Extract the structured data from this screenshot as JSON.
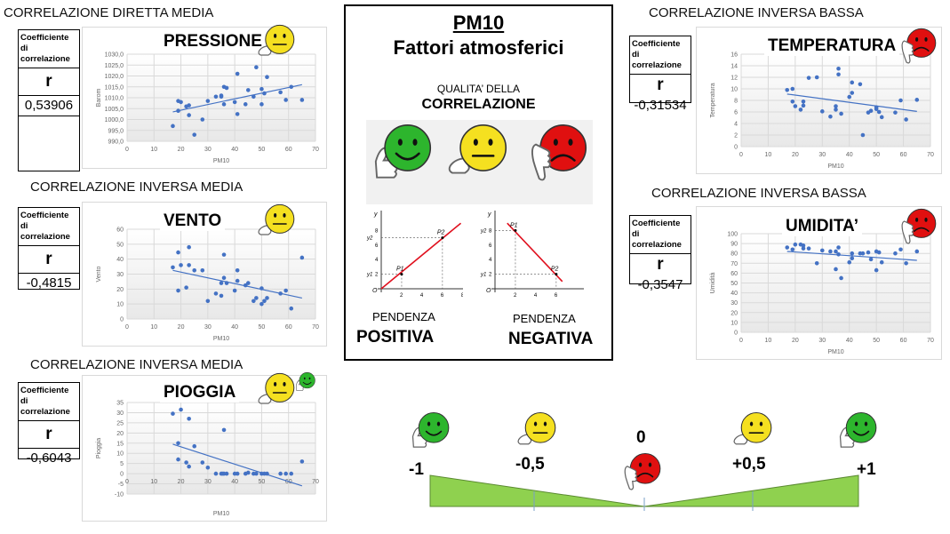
{
  "colors": {
    "point": "#4472c4",
    "trend": "#4472c4",
    "green_face": "#2db52d",
    "yellow_face": "#f5e020",
    "red_face": "#e01010",
    "scale_fill": "#8fd14f",
    "slope_line": "#e0101e"
  },
  "sections": [
    {
      "header": "CORRELAZIONE DIRETTA MEDIA",
      "coef_label": "Coefficiente di correlazione",
      "r_label": "r",
      "r_value": "0,53906",
      "title": "PRESSIONE",
      "faces": [
        "neutral"
      ]
    },
    {
      "header": "CORRELAZIONE INVERSA MEDIA",
      "coef_label": "Coefficiente di correlazione",
      "r_label": "r",
      "r_value": "-0,4815",
      "title": "VENTO",
      "faces": [
        "neutral"
      ]
    },
    {
      "header": "CORRELAZIONE INVERSA MEDIA",
      "coef_label": "Coefficiente di correlazione",
      "r_label": "r",
      "r_value": "-0,6043",
      "title": "PIOGGIA",
      "faces": [
        "neutral",
        "happy"
      ]
    },
    {
      "header": "CORRELAZIONE INVERSA BASSA",
      "coef_label": "Coefficiente di correlazione",
      "r_label": "r",
      "r_value": "-0,31534",
      "title": "TEMPERATURA",
      "faces": [
        "sad"
      ]
    },
    {
      "header": "CORRELAZIONE INVERSA BASSA",
      "coef_label": "Coefficiente di correlazione",
      "r_label": "r",
      "r_value": "-0,3547",
      "title": "UMIDITA’",
      "faces": [
        "sad"
      ]
    }
  ],
  "chart_data": [
    {
      "type": "scatter",
      "xlabel": "PM10",
      "ylabel": "Barom",
      "xlim": [
        0,
        70
      ],
      "xticks": [
        0,
        10,
        20,
        30,
        40,
        50,
        60,
        70
      ],
      "ylim": [
        990,
        1030
      ],
      "yticks": [
        "990,0",
        "995,0",
        "1000,0",
        "1005,0",
        "1010,0",
        "1015,0",
        "1020,0",
        "1025,0",
        "1030,0"
      ],
      "ystep": 5,
      "grid": true,
      "trendline": [
        [
          17,
          1003.5
        ],
        [
          65,
          1016
        ]
      ],
      "points": [
        [
          17,
          997
        ],
        [
          19,
          1008.5
        ],
        [
          19,
          1004
        ],
        [
          20,
          1008
        ],
        [
          22,
          1006
        ],
        [
          23,
          1006.5
        ],
        [
          23,
          1002
        ],
        [
          25,
          993
        ],
        [
          28,
          1000
        ],
        [
          30,
          1008.5
        ],
        [
          33,
          1010.5
        ],
        [
          35,
          1011
        ],
        [
          35,
          1010.5
        ],
        [
          36,
          1015
        ],
        [
          36,
          1007
        ],
        [
          37,
          1014.5
        ],
        [
          40,
          1008
        ],
        [
          41,
          1021
        ],
        [
          41,
          1002.5
        ],
        [
          44,
          1007
        ],
        [
          45,
          1013.5
        ],
        [
          47,
          1010.5
        ],
        [
          48,
          1024
        ],
        [
          50,
          1014
        ],
        [
          50,
          1007
        ],
        [
          51,
          1012
        ],
        [
          52,
          1019.5
        ],
        [
          57,
          1012.5
        ],
        [
          59,
          1009
        ],
        [
          61,
          1015
        ],
        [
          65,
          1009
        ]
      ]
    },
    {
      "type": "scatter",
      "xlabel": "PM10",
      "ylabel": "Vento",
      "xlim": [
        0,
        70
      ],
      "xticks": [
        0,
        10,
        20,
        30,
        40,
        50,
        60,
        70
      ],
      "ylim": [
        0,
        60
      ],
      "yticks": [
        "0",
        "10",
        "20",
        "30",
        "40",
        "50",
        "60"
      ],
      "ystep": 10,
      "grid": true,
      "trendline": [
        [
          17,
          32.5
        ],
        [
          65,
          14
        ]
      ],
      "points": [
        [
          17,
          34.5
        ],
        [
          19,
          44.5
        ],
        [
          19,
          19
        ],
        [
          20,
          36
        ],
        [
          22,
          21
        ],
        [
          23,
          48
        ],
        [
          23,
          36
        ],
        [
          25,
          32.5
        ],
        [
          28,
          32.5
        ],
        [
          30,
          12
        ],
        [
          33,
          17
        ],
        [
          35,
          15.5
        ],
        [
          35,
          24
        ],
        [
          36,
          43
        ],
        [
          36,
          27.5
        ],
        [
          37,
          24
        ],
        [
          40,
          19
        ],
        [
          41,
          32.5
        ],
        [
          41,
          25.5
        ],
        [
          44,
          22.5
        ],
        [
          45,
          24
        ],
        [
          47,
          12
        ],
        [
          48,
          14
        ],
        [
          50,
          20.5
        ],
        [
          50,
          10
        ],
        [
          51,
          12
        ],
        [
          52,
          14
        ],
        [
          57,
          17
        ],
        [
          59,
          19
        ],
        [
          61,
          7
        ],
        [
          65,
          41
        ]
      ]
    },
    {
      "type": "scatter",
      "xlabel": "PM10",
      "ylabel": "Pioggia",
      "xlim": [
        0,
        70
      ],
      "xticks": [
        0,
        10,
        20,
        30,
        40,
        50,
        60,
        70
      ],
      "ylim": [
        -10,
        35
      ],
      "yticks": [
        "-10",
        "-5",
        "0",
        "5",
        "10",
        "15",
        "20",
        "25",
        "30",
        "35"
      ],
      "ystep": 5,
      "grid": true,
      "trendline": [
        [
          17,
          14.5
        ],
        [
          65,
          -6
        ]
      ],
      "points": [
        [
          17,
          29.5
        ],
        [
          19,
          15
        ],
        [
          19,
          7
        ],
        [
          20,
          31.5
        ],
        [
          22,
          5.5
        ],
        [
          23,
          27
        ],
        [
          23,
          3.5
        ],
        [
          25,
          13.5
        ],
        [
          28,
          5.5
        ],
        [
          30,
          3
        ],
        [
          33,
          0
        ],
        [
          35,
          0
        ],
        [
          35.5,
          0
        ],
        [
          36,
          21.5
        ],
        [
          36,
          0
        ],
        [
          37,
          0
        ],
        [
          40,
          0
        ],
        [
          41,
          0
        ],
        [
          44,
          0
        ],
        [
          45,
          0.5
        ],
        [
          47,
          0
        ],
        [
          48,
          0
        ],
        [
          50,
          0
        ],
        [
          51,
          0
        ],
        [
          52,
          0
        ],
        [
          57,
          0
        ],
        [
          59,
          0
        ],
        [
          61,
          0
        ],
        [
          65,
          6
        ]
      ]
    },
    {
      "type": "scatter",
      "xlabel": "PM10",
      "ylabel": "Temperatura",
      "xlim": [
        0,
        70
      ],
      "xticks": [
        0,
        10,
        20,
        30,
        40,
        50,
        60,
        70
      ],
      "ylim": [
        0,
        16
      ],
      "yticks": [
        "0",
        "2",
        "4",
        "6",
        "8",
        "10",
        "12",
        "14",
        "16"
      ],
      "ystep": 2,
      "grid": true,
      "trendline": [
        [
          17,
          9.1
        ],
        [
          65,
          6.1
        ]
      ],
      "points": [
        [
          17,
          9.8
        ],
        [
          19,
          10
        ],
        [
          19,
          7.8
        ],
        [
          20,
          7
        ],
        [
          22,
          6.4
        ],
        [
          23,
          7.8
        ],
        [
          23,
          7.1
        ],
        [
          25,
          11.9
        ],
        [
          28,
          12
        ],
        [
          30,
          6.1
        ],
        [
          33,
          5.2
        ],
        [
          35,
          7
        ],
        [
          35,
          6.4
        ],
        [
          36,
          13.5
        ],
        [
          36,
          12.5
        ],
        [
          37,
          5.7
        ],
        [
          40,
          8.6
        ],
        [
          41,
          11.1
        ],
        [
          41,
          9.3
        ],
        [
          44,
          10.8
        ],
        [
          45,
          2
        ],
        [
          47,
          5.9
        ],
        [
          48,
          6.2
        ],
        [
          50,
          6.8
        ],
        [
          50,
          6.5
        ],
        [
          51,
          6
        ],
        [
          52,
          5.1
        ],
        [
          57,
          5.9
        ],
        [
          59,
          8
        ],
        [
          61,
          4.7
        ],
        [
          65,
          8.1
        ]
      ]
    },
    {
      "type": "scatter",
      "xlabel": "PM10",
      "ylabel": "Umidità",
      "xlim": [
        0,
        70
      ],
      "xticks": [
        0,
        10,
        20,
        30,
        40,
        50,
        60,
        70
      ],
      "ylim": [
        0,
        100
      ],
      "yticks": [
        "0",
        "10",
        "20",
        "30",
        "40",
        "50",
        "60",
        "70",
        "80",
        "90",
        "100"
      ],
      "ystep": 10,
      "grid": true,
      "trendline": [
        [
          17,
          82
        ],
        [
          65,
          73
        ]
      ],
      "points": [
        [
          17,
          86
        ],
        [
          19,
          84
        ],
        [
          20,
          89
        ],
        [
          22,
          89
        ],
        [
          23,
          88
        ],
        [
          23,
          85
        ],
        [
          25,
          85
        ],
        [
          28,
          70
        ],
        [
          30,
          83
        ],
        [
          33,
          82
        ],
        [
          35,
          82
        ],
        [
          35,
          64
        ],
        [
          36,
          86
        ],
        [
          36,
          79
        ],
        [
          37,
          55
        ],
        [
          40,
          71
        ],
        [
          41,
          80
        ],
        [
          41,
          75
        ],
        [
          44,
          80
        ],
        [
          45,
          80
        ],
        [
          47,
          81
        ],
        [
          48,
          74
        ],
        [
          50,
          82
        ],
        [
          50,
          63
        ],
        [
          51,
          81
        ],
        [
          52,
          71
        ],
        [
          57,
          80
        ],
        [
          59,
          84
        ],
        [
          61,
          70
        ],
        [
          65,
          82
        ]
      ]
    }
  ],
  "center": {
    "title": "PM10",
    "subtitle": "Fattori atmosferici",
    "quality_line1": "QUALITA’ DELLA",
    "quality_line2": "CORRELAZIONE",
    "faces": [
      "happy",
      "neutral",
      "sad"
    ],
    "slopes": [
      {
        "label1": "PENDENZA",
        "label2": "POSITIVA",
        "axis_x": "x",
        "axis_y": "y",
        "origin": "O",
        "xticks": [
          "2",
          "4",
          "6",
          "8"
        ],
        "yticks": [
          "2",
          "4",
          "6",
          "8"
        ],
        "p1": {
          "name": "P1",
          "x": 2,
          "y": 2,
          "xname": "x1",
          "yname": "y1"
        },
        "p2": {
          "name": "P2",
          "x": 6,
          "y": 7,
          "xname": "x2",
          "yname": "y2"
        },
        "line": [
          [
            0,
            0
          ],
          [
            7.8,
            9
          ]
        ]
      },
      {
        "label1": "PENDENZA",
        "label2": "NEGATIVA",
        "axis_x": "x",
        "axis_y": "y",
        "origin": "O",
        "xticks": [
          "2",
          "4",
          "6"
        ],
        "yticks": [
          "2",
          "4",
          "6",
          "8"
        ],
        "p1": {
          "name": "P1",
          "x": 2,
          "y": 8,
          "xname": "x1",
          "yname": "y2"
        },
        "p2": {
          "name": "P2",
          "x": 6,
          "y": 2,
          "xname": "x2",
          "yname": "y1"
        },
        "line": [
          [
            1.2,
            9
          ],
          [
            6.6,
            1
          ]
        ]
      }
    ]
  },
  "scale": {
    "labels": [
      "-1",
      "-0,5",
      "0",
      "+0,5",
      "+1"
    ],
    "faces": [
      "happy",
      "neutral",
      "sad",
      "neutral",
      "happy"
    ]
  }
}
